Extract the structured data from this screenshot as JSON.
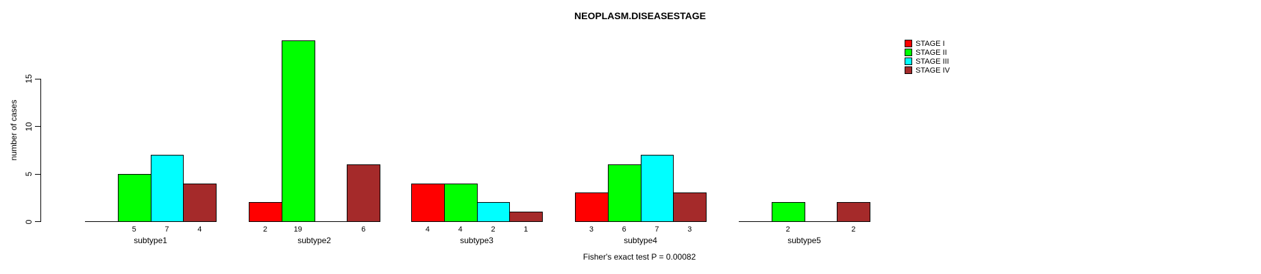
{
  "title": "NEOPLASM.DISEASESTAGE",
  "footer": "Fisher's exact test P = 0.00082",
  "y_axis": {
    "label": "number of cases",
    "ticks": [
      0,
      5,
      10,
      15
    ]
  },
  "legend": [
    {
      "label": "STAGE I",
      "color": "#FF0000"
    },
    {
      "label": "STAGE II",
      "color": "#00FF00"
    },
    {
      "label": "STAGE III",
      "color": "#00FFFF"
    },
    {
      "label": "STAGE IV",
      "color": "#A52A2A"
    }
  ],
  "chart_data": {
    "type": "bar",
    "title": "NEOPLASM.DISEASESTAGE",
    "categories": [
      "subtype1",
      "subtype2",
      "subtype3",
      "subtype4",
      "subtype5"
    ],
    "series": [
      {
        "name": "STAGE I",
        "color": "#FF0000",
        "values": [
          0,
          2,
          4,
          3,
          0
        ]
      },
      {
        "name": "STAGE II",
        "color": "#00FF00",
        "values": [
          5,
          19,
          4,
          6,
          2
        ]
      },
      {
        "name": "STAGE III",
        "color": "#00FFFF",
        "values": [
          7,
          0,
          2,
          7,
          0
        ]
      },
      {
        "name": "STAGE IV",
        "color": "#A52A2A",
        "values": [
          4,
          6,
          1,
          3,
          2
        ]
      }
    ],
    "xlabel": "",
    "ylabel": "number of cases",
    "ylim": [
      0,
      19
    ],
    "yticks": [
      0,
      5,
      10,
      15
    ],
    "grid": false,
    "legend_position": "top-right",
    "bar_value_labels_shown_for_nonzero_only": true,
    "annotation": "Fisher's exact test P = 0.00082"
  }
}
